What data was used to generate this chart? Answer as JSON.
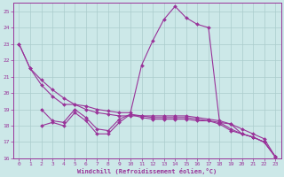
{
  "xlabel": "Windchill (Refroidissement éolien,°C)",
  "bg_color": "#cce8e8",
  "grid_color": "#aacccc",
  "line_color": "#993399",
  "xlim": [
    -0.5,
    23.5
  ],
  "ylim": [
    16,
    25.5
  ],
  "yticks": [
    16,
    17,
    18,
    19,
    20,
    21,
    22,
    23,
    24,
    25
  ],
  "xticks": [
    0,
    1,
    2,
    3,
    4,
    5,
    6,
    7,
    8,
    9,
    10,
    11,
    12,
    13,
    14,
    15,
    16,
    17,
    18,
    19,
    20,
    21,
    22,
    23
  ],
  "series": [
    {
      "x": [
        0,
        1,
        2,
        3,
        4,
        5,
        6,
        7,
        8,
        9,
        10,
        11,
        12,
        13,
        14,
        15,
        16,
        17,
        18,
        19,
        20,
        21,
        22,
        23
      ],
      "y": [
        23.0,
        21.5,
        20.5,
        19.8,
        19.3,
        19.3,
        19.2,
        19.0,
        18.9,
        18.8,
        18.8,
        21.7,
        23.2,
        24.5,
        25.3,
        24.6,
        24.2,
        24.0,
        18.2,
        18.1,
        17.5,
        17.3,
        17.0,
        16.1
      ]
    },
    {
      "x": [
        0,
        1,
        2,
        3,
        4,
        5,
        6,
        7,
        8,
        9,
        10,
        11,
        12,
        13,
        14,
        15,
        16,
        17,
        18,
        19,
        20,
        21,
        22,
        23
      ],
      "y": [
        23.0,
        21.5,
        20.8,
        20.2,
        19.7,
        19.3,
        19.0,
        18.8,
        18.7,
        18.6,
        18.6,
        18.6,
        18.6,
        18.6,
        18.6,
        18.6,
        18.5,
        18.4,
        18.3,
        18.1,
        17.8,
        17.5,
        17.2,
        16.1
      ]
    },
    {
      "x": [
        2,
        3,
        4,
        5,
        6,
        7,
        8,
        9,
        10,
        11,
        12,
        13,
        14,
        15,
        16,
        17,
        18,
        19,
        20,
        21,
        22,
        23
      ],
      "y": [
        19.0,
        18.3,
        18.2,
        19.0,
        18.5,
        17.8,
        17.7,
        18.4,
        18.7,
        18.6,
        18.5,
        18.5,
        18.5,
        18.5,
        18.4,
        18.3,
        18.2,
        17.8,
        17.5,
        17.3,
        17.0,
        16.1
      ]
    },
    {
      "x": [
        2,
        3,
        4,
        5,
        6,
        7,
        8,
        9,
        10,
        11,
        12,
        13,
        14,
        15,
        16,
        17,
        18,
        19,
        20,
        21,
        22,
        23
      ],
      "y": [
        18.0,
        18.2,
        18.0,
        18.8,
        18.3,
        17.5,
        17.5,
        18.2,
        18.7,
        18.5,
        18.4,
        18.4,
        18.4,
        18.4,
        18.3,
        18.3,
        18.1,
        17.7,
        17.5,
        17.3,
        17.0,
        16.1
      ]
    }
  ]
}
